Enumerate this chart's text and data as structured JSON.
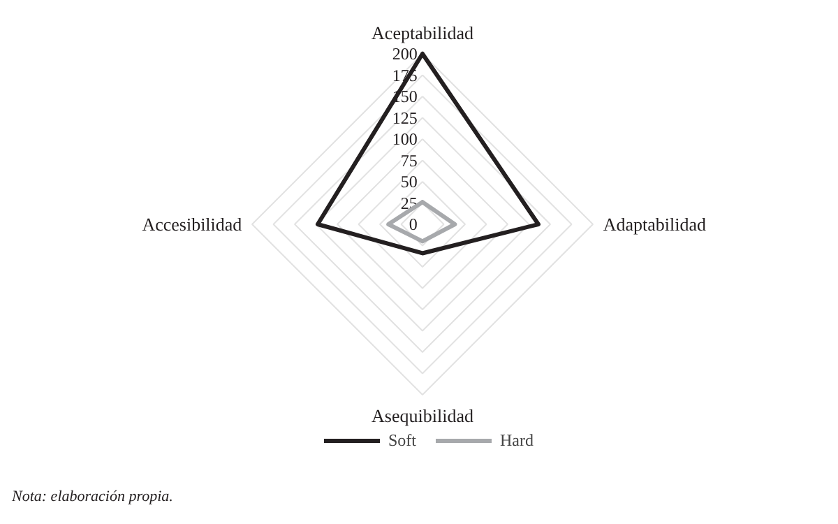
{
  "chart_data": {
    "type": "radar",
    "categories": [
      "Aceptabilidad",
      "Adaptabilidad",
      "Asequibilidad",
      "Accesibilidad"
    ],
    "series": [
      {
        "name": "Soft",
        "color": "#231f20",
        "values": [
          200,
          136,
          34,
          123
        ]
      },
      {
        "name": "Hard",
        "color": "#a7a9ac",
        "values": [
          26,
          38,
          20,
          40
        ]
      }
    ],
    "ylim": [
      0,
      200
    ],
    "yticks": [
      0,
      25,
      50,
      75,
      100,
      125,
      150,
      175,
      200
    ],
    "grid": true,
    "legend": "bottom",
    "line_style": "solid",
    "marker": "none",
    "annotations": [
      "Nota: elaboración propia."
    ]
  }
}
